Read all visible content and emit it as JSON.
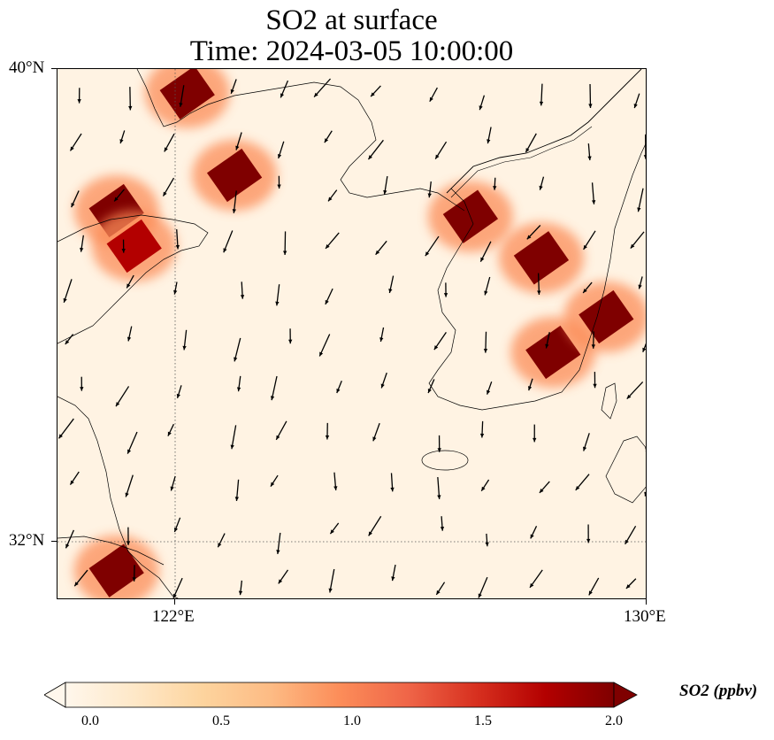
{
  "title": {
    "line1": "SO2 at surface",
    "line2": "Time: 2024-03-05 10:00:00"
  },
  "map": {
    "lat_ticks": [
      "40°N",
      "32°N"
    ],
    "lon_ticks": [
      "122°E",
      "130°E"
    ],
    "gridlines": "dotted",
    "extent": {
      "lon": [
        120,
        130
      ],
      "lat": [
        31,
        40
      ]
    }
  },
  "colorbar": {
    "label": "SO2 (ppbv)",
    "ticks": [
      "0.0",
      "0.5",
      "1.0",
      "1.5",
      "2.0"
    ],
    "range": [
      0,
      2
    ],
    "colormap": "OrRd",
    "colors": [
      "#fff7ec",
      "#fee8c8",
      "#fdd49e",
      "#fdbb84",
      "#fc8d59",
      "#ef6548",
      "#d7301f",
      "#b30000",
      "#7f0000"
    ]
  },
  "chart_data": {
    "type": "heatmap",
    "variable": "SO2",
    "units": "ppbv",
    "vector_field": "wind",
    "hotspots_ppbv": [
      {
        "lon": 122.2,
        "lat": 39.6,
        "value": 2.0
      },
      {
        "lon": 123.0,
        "lat": 38.2,
        "value": 2.0
      },
      {
        "lon": 121.0,
        "lat": 37.6,
        "value": 2.0
      },
      {
        "lon": 121.3,
        "lat": 37.0,
        "value": 1.8
      },
      {
        "lon": 127.0,
        "lat": 37.5,
        "value": 2.0
      },
      {
        "lon": 128.2,
        "lat": 36.8,
        "value": 2.0
      },
      {
        "lon": 128.4,
        "lat": 35.2,
        "value": 2.0
      },
      {
        "lon": 129.3,
        "lat": 35.8,
        "value": 2.0
      },
      {
        "lon": 121.0,
        "lat": 31.5,
        "value": 2.0
      }
    ]
  }
}
